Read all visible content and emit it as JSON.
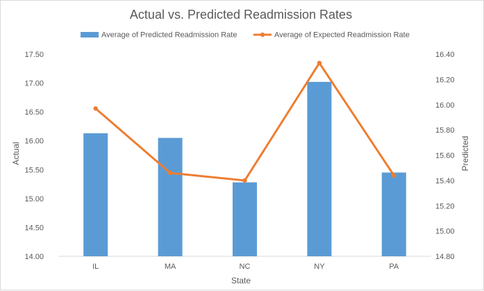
{
  "chart_data": {
    "type": "bar",
    "title": "Actual vs. Predicted Readmission Rates",
    "xlabel": "State",
    "ylabel": "Actual",
    "y2label": "Predicted",
    "categories": [
      "IL",
      "MA",
      "NC",
      "NY",
      "PA"
    ],
    "ylim": [
      14.0,
      17.5
    ],
    "y_ticks": [
      "14.00",
      "14.50",
      "15.00",
      "15.50",
      "16.00",
      "16.50",
      "17.00",
      "17.50"
    ],
    "y2lim": [
      14.8,
      16.4
    ],
    "y2_ticks": [
      "14.80",
      "15.00",
      "15.20",
      "15.40",
      "15.60",
      "15.80",
      "16.00",
      "16.20",
      "16.40"
    ],
    "legend_position": "top",
    "grid": "off",
    "series": [
      {
        "name": "Average of Predicted Readmission Rate",
        "type": "bar",
        "axis": "left",
        "color": "#5b9bd5",
        "values": [
          16.13,
          16.05,
          15.28,
          17.02,
          15.45
        ]
      },
      {
        "name": "Average of Expected Readmission Rate",
        "type": "line",
        "axis": "right",
        "color": "#ed7d31",
        "values": [
          15.97,
          15.46,
          15.4,
          16.33,
          15.44
        ]
      }
    ]
  }
}
